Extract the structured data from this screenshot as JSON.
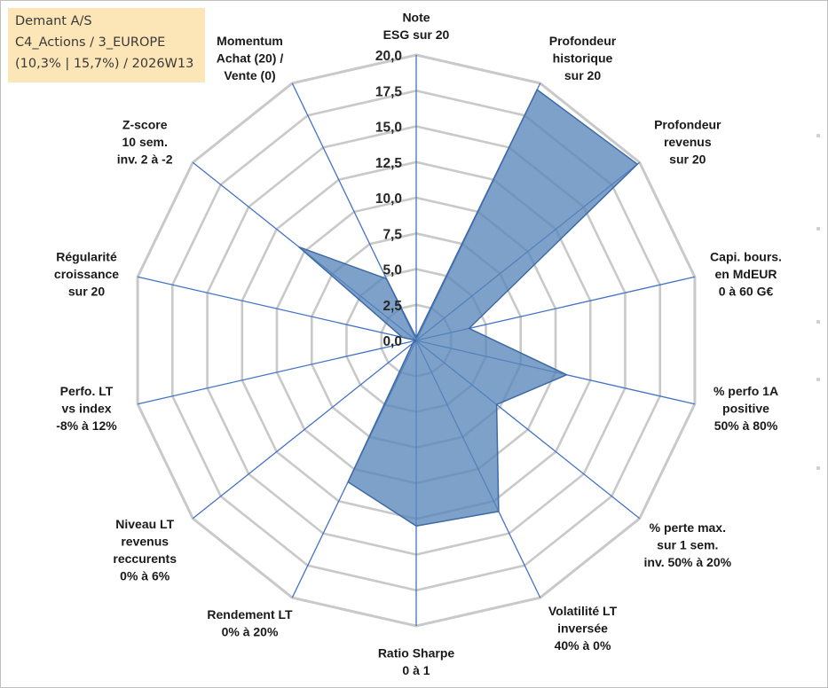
{
  "info": {
    "line1": "Demant A/S",
    "line2": "C4_Actions / 3_EUROPE",
    "line3": "(10,3% | 15,7%) / 2026W13"
  },
  "chart_data": {
    "type": "radar",
    "rmax": 20,
    "step": 2.5,
    "grid": true,
    "ticks": [
      "0,0",
      "2,5",
      "5,0",
      "7,5",
      "10,0",
      "12,5",
      "15,0",
      "17,5",
      "20,0"
    ],
    "axes": [
      {
        "label": [
          "Note",
          "ESG sur 20"
        ]
      },
      {
        "label": [
          "Profondeur",
          "historique",
          "sur 20"
        ]
      },
      {
        "label": [
          "Profondeur",
          "revenus",
          "sur 20"
        ]
      },
      {
        "label": [
          "Capi. bours.",
          "en MdEUR",
          "0 à 60 G€"
        ]
      },
      {
        "label": [
          "% perfo 1A",
          "positive",
          "50% à 80%"
        ]
      },
      {
        "label": [
          "% perte max.",
          "sur 1 sem.",
          "inv. 50% à 20%"
        ]
      },
      {
        "label": [
          "Volatilité LT",
          "inversée",
          "40% à 0%"
        ]
      },
      {
        "label": [
          "Ratio Sharpe",
          "0 à 1"
        ]
      },
      {
        "label": [
          "Rendement LT",
          "0% à 20%"
        ]
      },
      {
        "label": [
          "Niveau LT",
          "revenus",
          "reccurents",
          "0% à 6%"
        ]
      },
      {
        "label": [
          "Perfo. LT",
          "vs index",
          "-8% à 12%"
        ]
      },
      {
        "label": [
          "Régularité",
          "croissance",
          "sur 20"
        ]
      },
      {
        "label": [
          "Z-score",
          "10 sem.",
          "inv. 2 à -2"
        ]
      },
      {
        "label": [
          "Momentum",
          "Achat (20) /",
          "Vente (0)"
        ]
      }
    ],
    "series": [
      {
        "values": [
          0.2,
          19.5,
          19.8,
          3.8,
          10.8,
          7.2,
          13.3,
          13.0,
          11.0,
          0.3,
          0.0,
          1.0,
          10.5,
          4.8
        ]
      }
    ],
    "colors": {
      "fill": "#5a86ba",
      "line": "#3d6aa6",
      "spoke": "#4472c4",
      "grid": "#c9c9c9"
    }
  }
}
